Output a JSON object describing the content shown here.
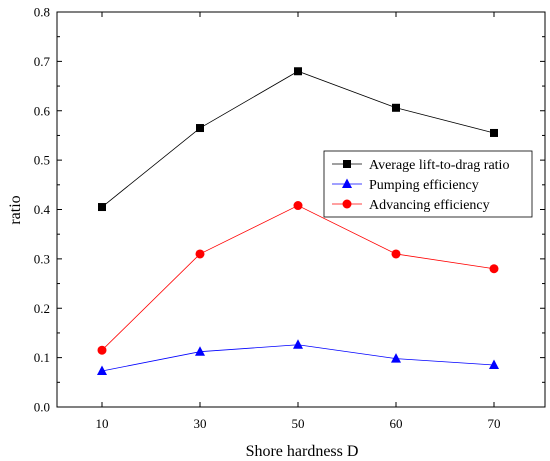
{
  "chart_data": {
    "type": "line",
    "title": "",
    "xlabel": "Shore hardness D",
    "ylabel": "ratio",
    "categories": [
      "10",
      "30",
      "50",
      "60",
      "70"
    ],
    "ylim": [
      0.0,
      0.8
    ],
    "yticks": [
      "0.0",
      "0.1",
      "0.2",
      "0.3",
      "0.4",
      "0.5",
      "0.6",
      "0.7",
      "0.8"
    ],
    "grid": false,
    "legend": "right",
    "series": [
      {
        "name": "Average lift-to-drag ratio",
        "values": [
          0.405,
          0.565,
          0.68,
          0.606,
          0.555
        ],
        "color": "#000000",
        "marker": "square"
      },
      {
        "name": "Pumping efficiency",
        "values": [
          0.073,
          0.112,
          0.126,
          0.098,
          0.085
        ],
        "color": "#0000ff",
        "marker": "triangle"
      },
      {
        "name": "Advancing efficiency",
        "values": [
          0.115,
          0.31,
          0.408,
          0.31,
          0.28
        ],
        "color": "#ff0000",
        "marker": "circle"
      }
    ]
  }
}
